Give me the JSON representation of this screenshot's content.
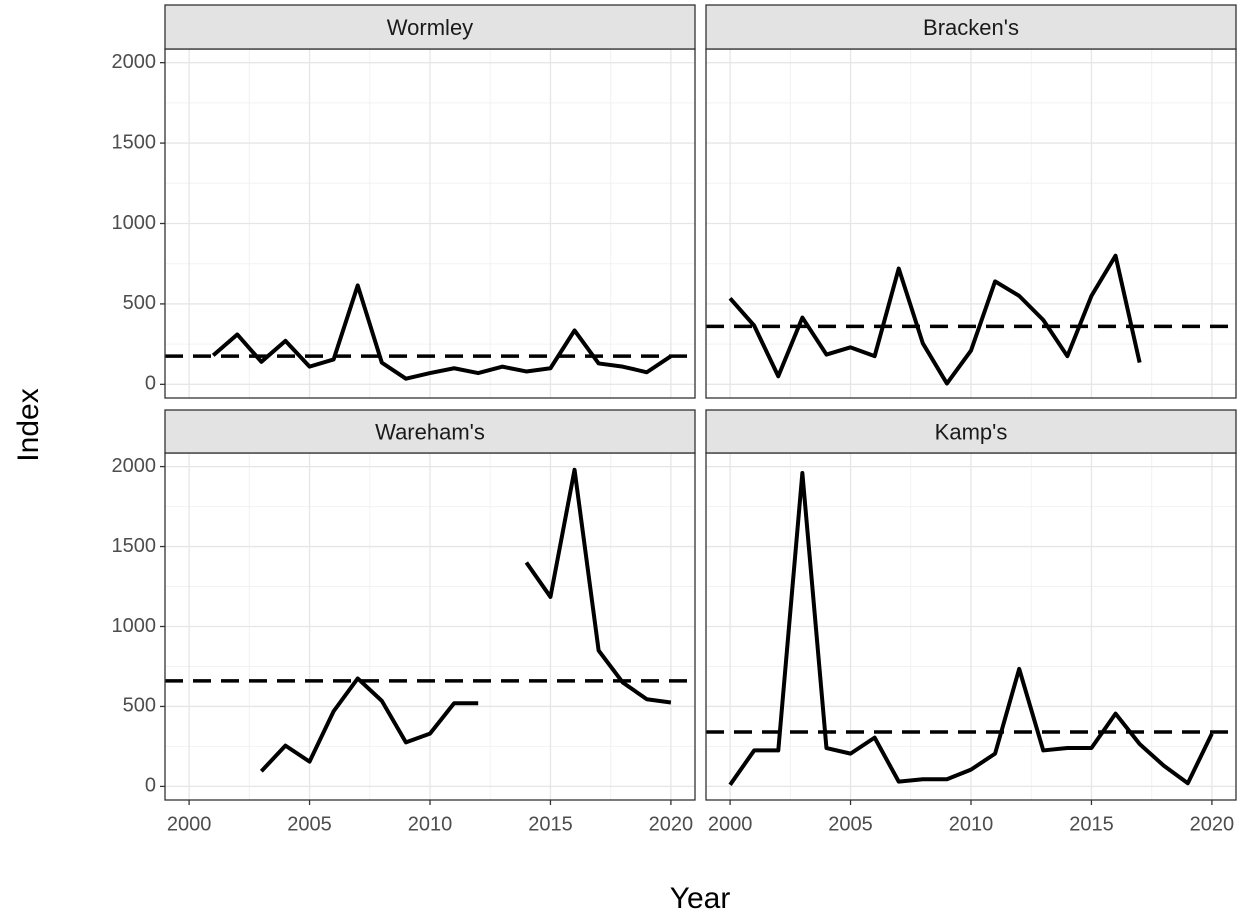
{
  "xlabel": "Year",
  "ylabel": "Index",
  "chart_data": [
    {
      "type": "line",
      "title": "Wormley",
      "x": [
        2000,
        2001,
        2002,
        2003,
        2004,
        2005,
        2006,
        2007,
        2008,
        2009,
        2010,
        2011,
        2012,
        2013,
        2014,
        2015,
        2016,
        2017,
        2018,
        2019,
        2020
      ],
      "values": [
        null,
        180,
        310,
        140,
        270,
        110,
        155,
        615,
        135,
        35,
        70,
        100,
        70,
        110,
        80,
        100,
        335,
        130,
        110,
        75,
        175
      ],
      "color": "#000000",
      "reference_line": 175,
      "reference_style": "dashed",
      "xlim": [
        1999,
        2021
      ],
      "ylim": [
        -85,
        2085
      ],
      "xticks": [
        2000,
        2005,
        2010,
        2015,
        2020
      ],
      "yticks": [
        0,
        500,
        1000,
        1500,
        2000
      ],
      "grid": true,
      "minor_grid": true
    },
    {
      "type": "line",
      "title": "Bracken's",
      "x": [
        2000,
        2001,
        2002,
        2003,
        2004,
        2005,
        2006,
        2007,
        2008,
        2009,
        2010,
        2011,
        2012,
        2013,
        2014,
        2015,
        2016,
        2017,
        2018,
        2019,
        2020
      ],
      "values": [
        535,
        365,
        50,
        415,
        185,
        230,
        175,
        720,
        255,
        5,
        210,
        640,
        550,
        400,
        175,
        550,
        800,
        135,
        null,
        null,
        null
      ],
      "color": "#000000",
      "reference_line": 360,
      "reference_style": "dashed",
      "xlim": [
        1999,
        2021
      ],
      "ylim": [
        -85,
        2085
      ],
      "xticks": [
        2000,
        2005,
        2010,
        2015,
        2020
      ],
      "yticks": [
        0,
        500,
        1000,
        1500,
        2000
      ],
      "grid": true,
      "minor_grid": true
    },
    {
      "type": "line",
      "title": "Wareham's",
      "x": [
        2000,
        2001,
        2002,
        2003,
        2004,
        2005,
        2006,
        2007,
        2008,
        2009,
        2010,
        2011,
        2012,
        2013,
        2014,
        2015,
        2016,
        2017,
        2018,
        2019,
        2020
      ],
      "values": [
        null,
        null,
        null,
        95,
        255,
        155,
        470,
        675,
        535,
        275,
        330,
        520,
        520,
        null,
        1400,
        1185,
        1980,
        850,
        650,
        545,
        525
      ],
      "color": "#000000",
      "reference_line": 660,
      "reference_style": "dashed",
      "xlim": [
        1999,
        2021
      ],
      "ylim": [
        -85,
        2085
      ],
      "xticks": [
        2000,
        2005,
        2010,
        2015,
        2020
      ],
      "yticks": [
        0,
        500,
        1000,
        1500,
        2000
      ],
      "grid": true,
      "minor_grid": true
    },
    {
      "type": "line",
      "title": "Kamp's",
      "x": [
        2000,
        2001,
        2002,
        2003,
        2004,
        2005,
        2006,
        2007,
        2008,
        2009,
        2010,
        2011,
        2012,
        2013,
        2014,
        2015,
        2016,
        2017,
        2018,
        2019,
        2020
      ],
      "values": [
        10,
        225,
        225,
        1960,
        240,
        205,
        305,
        30,
        45,
        45,
        105,
        205,
        735,
        225,
        240,
        240,
        455,
        265,
        130,
        20,
        330
      ],
      "color": "#000000",
      "reference_line": 340,
      "reference_style": "dashed",
      "xlim": [
        1999,
        2021
      ],
      "ylim": [
        -85,
        2085
      ],
      "xticks": [
        2000,
        2005,
        2010,
        2015,
        2020
      ],
      "yticks": [
        0,
        500,
        1000,
        1500,
        2000
      ],
      "grid": true,
      "minor_grid": true
    }
  ]
}
